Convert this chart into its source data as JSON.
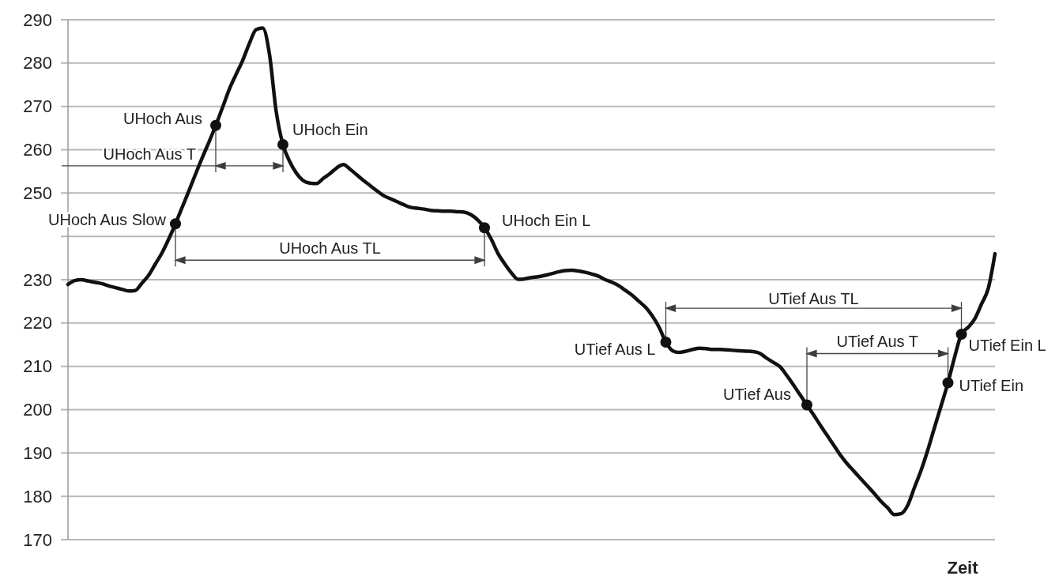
{
  "chart_data": {
    "type": "line",
    "xlabel": "Zeit",
    "categories": [
      null,
      null,
      null,
      null,
      null,
      null,
      null,
      null,
      null,
      null,
      null,
      null,
      null,
      null,
      null,
      null,
      null,
      null,
      null,
      null,
      null,
      null,
      null,
      null,
      null,
      null,
      null,
      null,
      null,
      null,
      null,
      null,
      null,
      null,
      null,
      null,
      null,
      null,
      null,
      null,
      null,
      null,
      null,
      null,
      null,
      null,
      null,
      null,
      null,
      null,
      null,
      null,
      null,
      null,
      null,
      null,
      null,
      null,
      null,
      null,
      null,
      null,
      null,
      null,
      null,
      null,
      null,
      null,
      null,
      null,
      null,
      null,
      null,
      null,
      null,
      null,
      null,
      null,
      null,
      null,
      null,
      null,
      null,
      null,
      null,
      null,
      null,
      null,
      null,
      null,
      null,
      null,
      null,
      null,
      null,
      null,
      null,
      null,
      null,
      null,
      null,
      null,
      null,
      null,
      null,
      null,
      null,
      null,
      null,
      null,
      null,
      null,
      null,
      null,
      null,
      null,
      null,
      null,
      null,
      null,
      null,
      null,
      null,
      null,
      null,
      null,
      null,
      null,
      null,
      null,
      null,
      null,
      null,
      null,
      null,
      null,
      null,
      null,
      null
    ],
    "series": [
      {
        "color": "#111111",
        "values": [
          228.9,
          229.8,
          230.0,
          229.7,
          229.4,
          229.1,
          228.6,
          228.2,
          227.8,
          227.4,
          227.5,
          229.2,
          231.0,
          233.6,
          236.2,
          239.4,
          242.9,
          246.7,
          250.5,
          254.4,
          258.2,
          261.8,
          265.6,
          269.7,
          273.9,
          277.3,
          280.6,
          284.5,
          287.7,
          288.1,
          282.0,
          268.8,
          261.2,
          257.3,
          254.6,
          252.9,
          252.3,
          252.2,
          253.4,
          254.5,
          255.8,
          256.6,
          255.5,
          254.2,
          252.9,
          251.7,
          250.5,
          249.4,
          248.7,
          248.0,
          247.3,
          246.7,
          246.5,
          246.3,
          246.0,
          245.9,
          245.8,
          245.8,
          245.7,
          245.6,
          245.0,
          243.8,
          242.0,
          239.4,
          236.1,
          233.7,
          231.6,
          230.1,
          230.2,
          230.5,
          230.7,
          231.0,
          231.4,
          231.8,
          232.1,
          232.2,
          232.0,
          231.7,
          231.3,
          230.8,
          230.0,
          229.4,
          228.6,
          227.5,
          226.4,
          225.0,
          223.6,
          221.6,
          219.0,
          215.6,
          213.6,
          213.2,
          213.5,
          213.9,
          214.2,
          214.1,
          213.9,
          213.9,
          213.8,
          213.7,
          213.6,
          213.5,
          213.4,
          213.0,
          211.9,
          210.9,
          209.9,
          207.9,
          205.7,
          203.4,
          201.1,
          198.8,
          196.4,
          194.1,
          191.8,
          189.5,
          187.5,
          185.8,
          184.1,
          182.4,
          180.7,
          178.9,
          177.4,
          175.8,
          176.0,
          177.9,
          182.0,
          186.0,
          190.7,
          195.9,
          201.0,
          206.2,
          212.2,
          217.4,
          219.0,
          221.0,
          224.4,
          228.0,
          236.0
        ]
      },
      {
        "type": "scatter",
        "color": "#111111",
        "marker": "circle",
        "values": [
          null,
          null,
          null,
          null,
          null,
          null,
          null,
          null,
          null,
          null,
          null,
          null,
          null,
          null,
          null,
          null,
          242.9,
          null,
          null,
          null,
          null,
          null,
          265.6,
          null,
          null,
          null,
          null,
          null,
          null,
          null,
          null,
          null,
          261.2,
          null,
          null,
          null,
          null,
          null,
          null,
          null,
          null,
          null,
          null,
          null,
          null,
          null,
          null,
          null,
          null,
          null,
          null,
          null,
          null,
          null,
          null,
          null,
          null,
          null,
          null,
          null,
          null,
          null,
          242.0,
          null,
          null,
          null,
          null,
          null,
          null,
          null,
          null,
          null,
          null,
          null,
          null,
          null,
          null,
          null,
          null,
          null,
          null,
          null,
          null,
          null,
          null,
          null,
          null,
          null,
          null,
          215.6,
          null,
          null,
          null,
          null,
          null,
          null,
          null,
          null,
          null,
          null,
          null,
          null,
          null,
          null,
          null,
          null,
          null,
          null,
          null,
          null,
          201.1,
          null,
          null,
          null,
          null,
          null,
          null,
          null,
          null,
          null,
          null,
          null,
          null,
          null,
          null,
          null,
          null,
          null,
          null,
          null,
          null,
          206.2,
          null,
          217.4,
          null,
          null,
          null,
          null,
          null
        ],
        "value_labels": [
          null,
          null,
          null,
          null,
          null,
          null,
          null,
          null,
          null,
          null,
          null,
          null,
          null,
          null,
          null,
          null,
          "UHoch Aus Slow",
          null,
          null,
          null,
          null,
          null,
          "UHoch Aus",
          null,
          null,
          null,
          null,
          null,
          null,
          null,
          null,
          null,
          "UHoch Ein",
          null,
          null,
          null,
          null,
          null,
          null,
          null,
          null,
          null,
          null,
          null,
          null,
          null,
          null,
          null,
          null,
          null,
          null,
          null,
          null,
          null,
          null,
          null,
          null,
          null,
          null,
          null,
          null,
          null,
          "UHoch Ein L",
          null,
          null,
          null,
          null,
          null,
          null,
          null,
          null,
          null,
          null,
          null,
          null,
          null,
          null,
          null,
          null,
          null,
          null,
          null,
          null,
          null,
          null,
          null,
          null,
          null,
          null,
          "UTief Aus L",
          null,
          null,
          null,
          null,
          null,
          null,
          null,
          null,
          null,
          null,
          null,
          null,
          null,
          null,
          null,
          null,
          null,
          null,
          null,
          null,
          "UTief Aus",
          null,
          null,
          null,
          null,
          null,
          null,
          null,
          null,
          null,
          null,
          null,
          null,
          null,
          null,
          null,
          null,
          null,
          null,
          null,
          null,
          "UTief Ein",
          null,
          "UTief Ein L",
          null,
          null,
          null,
          null,
          null
        ]
      }
    ],
    "ylim": [
      170,
      290
    ],
    "yticks": [
      170,
      180,
      190,
      200,
      210,
      220,
      230,
      {
        "value": 240,
        "label": null
      },
      250,
      260,
      270,
      280,
      290
    ],
    "grid": "y",
    "tick_labels": "y",
    "annotations": [
      "UHoch Aus T",
      "UHoch Aus TL",
      "UTief Aus TL",
      "UTief Aus T"
    ]
  }
}
